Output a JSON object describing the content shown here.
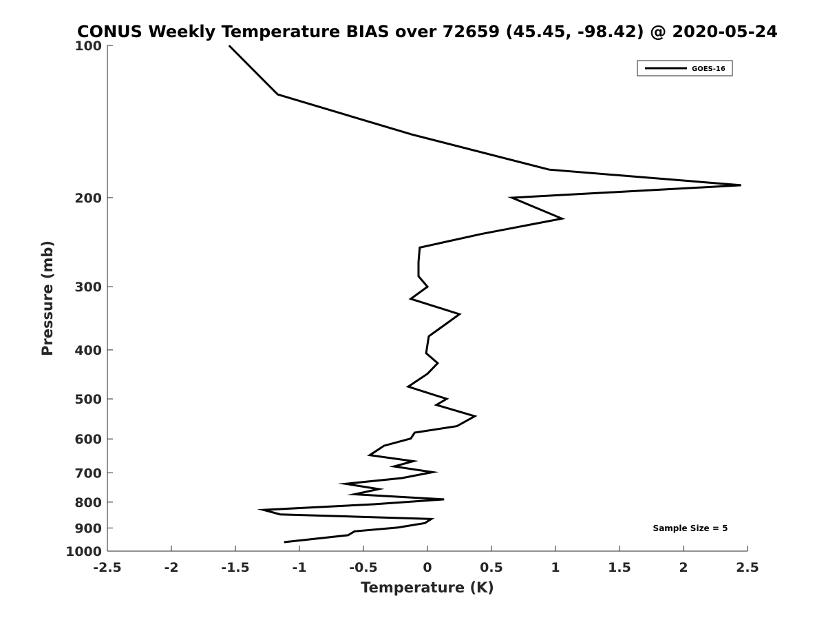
{
  "chart_data": {
    "type": "line",
    "title": "CONUS Weekly Temperature BIAS over 72659 (45.45, -98.42) @ 2020-05-24",
    "xlabel": "Temperature (K)",
    "ylabel": "Pressure (mb)",
    "xlim": [
      -2.5,
      2.5
    ],
    "ylim": [
      100,
      1000
    ],
    "y_scale": "log",
    "y_reversed": true,
    "grid": false,
    "legend_position": "top-right",
    "x_ticks": [
      -2.5,
      -2,
      -1.5,
      -1,
      -0.5,
      0,
      0.5,
      1,
      1.5,
      2,
      2.5
    ],
    "x_tick_labels": [
      "-2.5",
      "-2",
      "-1.5",
      "-1",
      "-0.5",
      "0",
      "0.5",
      "1",
      "1.5",
      "2",
      "2.5"
    ],
    "y_ticks": [
      100,
      200,
      300,
      400,
      500,
      600,
      700,
      800,
      900,
      1000
    ],
    "y_tick_labels": [
      "100",
      "200",
      "300",
      "400",
      "500",
      "600",
      "700",
      "800",
      "900",
      "1000"
    ],
    "series": [
      {
        "name": "GOES-16",
        "color": "#000000",
        "points": [
          {
            "x": -1.55,
            "y": 100
          },
          {
            "x": -1.17,
            "y": 125
          },
          {
            "x": -0.12,
            "y": 150
          },
          {
            "x": 0.95,
            "y": 176
          },
          {
            "x": 2.45,
            "y": 189
          },
          {
            "x": 0.66,
            "y": 200
          },
          {
            "x": 1.05,
            "y": 220
          },
          {
            "x": 0.42,
            "y": 236
          },
          {
            "x": -0.06,
            "y": 251
          },
          {
            "x": -0.07,
            "y": 268
          },
          {
            "x": -0.07,
            "y": 286
          },
          {
            "x": 0.0,
            "y": 300
          },
          {
            "x": -0.13,
            "y": 317
          },
          {
            "x": 0.25,
            "y": 340
          },
          {
            "x": 0.01,
            "y": 376
          },
          {
            "x": -0.01,
            "y": 406
          },
          {
            "x": 0.08,
            "y": 425
          },
          {
            "x": 0.0,
            "y": 446
          },
          {
            "x": -0.15,
            "y": 473
          },
          {
            "x": 0.15,
            "y": 500
          },
          {
            "x": 0.07,
            "y": 514
          },
          {
            "x": 0.37,
            "y": 541
          },
          {
            "x": 0.23,
            "y": 566
          },
          {
            "x": -0.1,
            "y": 583
          },
          {
            "x": -0.13,
            "y": 599
          },
          {
            "x": -0.34,
            "y": 619
          },
          {
            "x": -0.45,
            "y": 646
          },
          {
            "x": -0.11,
            "y": 664
          },
          {
            "x": -0.26,
            "y": 680
          },
          {
            "x": 0.04,
            "y": 698
          },
          {
            "x": -0.2,
            "y": 717
          },
          {
            "x": -0.64,
            "y": 736
          },
          {
            "x": -0.38,
            "y": 754
          },
          {
            "x": -0.57,
            "y": 772
          },
          {
            "x": 0.13,
            "y": 790
          },
          {
            "x": -0.42,
            "y": 808
          },
          {
            "x": -1.28,
            "y": 829
          },
          {
            "x": -1.15,
            "y": 846
          },
          {
            "x": 0.03,
            "y": 864
          },
          {
            "x": -0.02,
            "y": 880
          },
          {
            "x": -0.23,
            "y": 898
          },
          {
            "x": -0.57,
            "y": 914
          },
          {
            "x": -0.62,
            "y": 930
          },
          {
            "x": -1.12,
            "y": 960
          }
        ]
      }
    ],
    "annotations": [
      {
        "text": "Sample Size = 5",
        "position": "bottom-right"
      }
    ]
  }
}
